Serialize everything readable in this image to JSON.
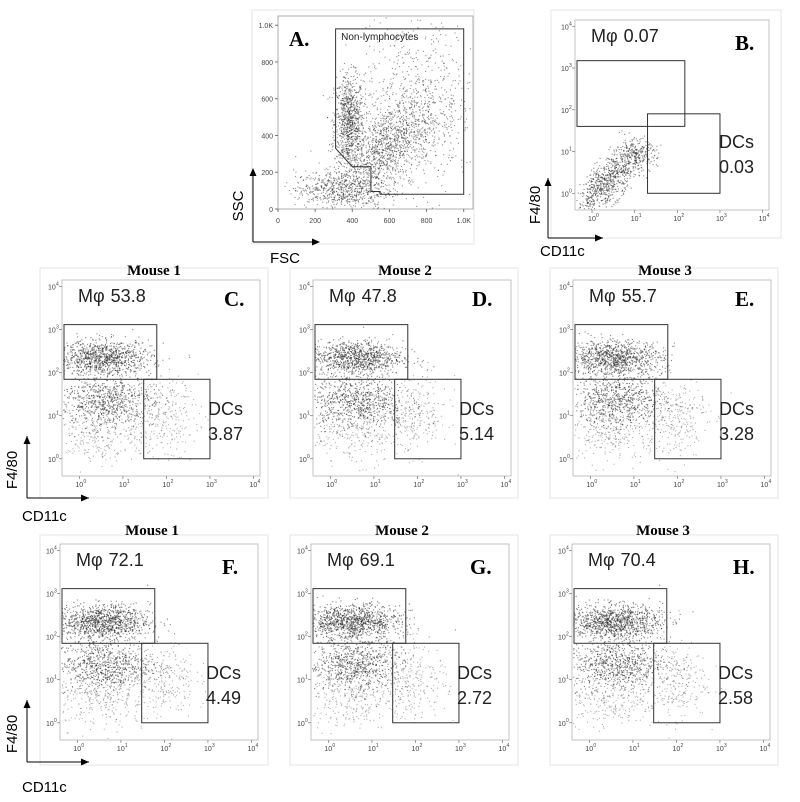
{
  "chart_data": [
    {
      "type": "scatter",
      "panel": "A.",
      "xlabel": "FSC",
      "ylabel": "SSC",
      "xlim": [
        0,
        1000
      ],
      "ylim": [
        0,
        1000
      ],
      "x_ticks": [
        "0",
        "200",
        "400",
        "600",
        "800",
        "1.0K"
      ],
      "y_ticks": [
        "0",
        "200",
        "400",
        "600",
        "800",
        "1.0K"
      ],
      "gates": [
        {
          "name": "Non-lymphocytes",
          "points": [
            [
              310,
              980
            ],
            [
              1000,
              980
            ],
            [
              1000,
              80
            ],
            [
              550,
              80
            ],
            [
              550,
              95
            ],
            [
              500,
              95
            ],
            [
              500,
              230
            ],
            [
              400,
              230
            ],
            [
              310,
              330
            ]
          ]
        }
      ]
    },
    {
      "type": "scatter",
      "panel": "B.",
      "xlabel": "CD11c",
      "ylabel": "F4/80",
      "scale": "log",
      "xlim": [
        0.5,
        10000
      ],
      "ylim": [
        0.5,
        10000
      ],
      "gates": [
        {
          "name": "Mφ",
          "value": "0.07",
          "x": [
            0.3,
            150
          ],
          "y": [
            40,
            1500
          ]
        },
        {
          "name": "DCs",
          "value": "0.03",
          "x": [
            20,
            1000
          ],
          "y": [
            1,
            80
          ]
        }
      ]
    },
    {
      "type": "scatter",
      "panel": "C.",
      "title": "Mouse 1",
      "xlabel": "CD11c",
      "ylabel": "F4/80",
      "scale": "log",
      "gates": [
        {
          "name": "Mφ",
          "value": "53.8",
          "x": [
            0.3,
            60
          ],
          "y": [
            70,
            1300
          ]
        },
        {
          "name": "DCs",
          "value": "3.87",
          "x": [
            30,
            1000
          ],
          "y": [
            1,
            70
          ]
        }
      ]
    },
    {
      "type": "scatter",
      "panel": "D.",
      "title": "Mouse 2",
      "xlabel": "CD11c",
      "ylabel": "F4/80",
      "scale": "log",
      "gates": [
        {
          "name": "Mφ",
          "value": "47.8",
          "x": [
            0.3,
            60
          ],
          "y": [
            70,
            1300
          ]
        },
        {
          "name": "DCs",
          "value": "5.14",
          "x": [
            30,
            1000
          ],
          "y": [
            1,
            70
          ]
        }
      ]
    },
    {
      "type": "scatter",
      "panel": "E.",
      "title": "Mouse 3",
      "xlabel": "CD11c",
      "ylabel": "F4/80",
      "scale": "log",
      "gates": [
        {
          "name": "Mφ",
          "value": "55.7",
          "x": [
            0.3,
            60
          ],
          "y": [
            70,
            1300
          ]
        },
        {
          "name": "DCs",
          "value": "3.28",
          "x": [
            30,
            1000
          ],
          "y": [
            1,
            70
          ]
        }
      ]
    },
    {
      "type": "scatter",
      "panel": "F.",
      "title": "Mouse 1",
      "xlabel": "CD11c",
      "ylabel": "F4/80",
      "scale": "log",
      "gates": [
        {
          "name": "Mφ",
          "value": "72.1",
          "x": [
            0.3,
            60
          ],
          "y": [
            70,
            1300
          ]
        },
        {
          "name": "DCs",
          "value": "4.49",
          "x": [
            30,
            1000
          ],
          "y": [
            1,
            70
          ]
        }
      ]
    },
    {
      "type": "scatter",
      "panel": "G.",
      "title": "Mouse 2",
      "xlabel": "CD11c",
      "ylabel": "F4/80",
      "scale": "log",
      "gates": [
        {
          "name": "Mφ",
          "value": "69.1",
          "x": [
            0.3,
            60
          ],
          "y": [
            70,
            1300
          ]
        },
        {
          "name": "DCs",
          "value": "2.72",
          "x": [
            30,
            1000
          ],
          "y": [
            1,
            70
          ]
        }
      ]
    },
    {
      "type": "scatter",
      "panel": "H.",
      "title": "Mouse 3",
      "xlabel": "CD11c",
      "ylabel": "F4/80",
      "scale": "log",
      "gates": [
        {
          "name": "Mφ",
          "value": "70.4",
          "x": [
            0.3,
            60
          ],
          "y": [
            70,
            1300
          ]
        },
        {
          "name": "DCs",
          "value": "2.58",
          "x": [
            30,
            1000
          ],
          "y": [
            1,
            70
          ]
        }
      ]
    }
  ]
}
